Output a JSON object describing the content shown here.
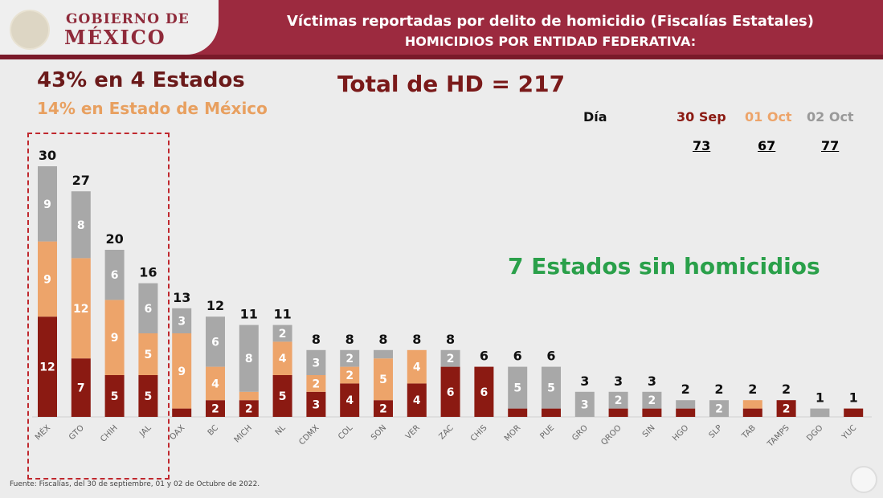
{
  "header": {
    "logo_line1": "GOBIERNO DE",
    "logo_line2": "MÉXICO",
    "title": "Víctimas reportadas por delito de homicidio (Fiscalías Estatales)",
    "subtitle": "HOMICIDIOS POR ENTIDAD FEDERATIVA:"
  },
  "summary": {
    "line1": "43% en 4 Estados",
    "line2": "14% en Estado de México",
    "total": "Total de HD = 217",
    "no_homicides": "7 Estados sin homicidios"
  },
  "legend": {
    "label": "Día",
    "days": [
      {
        "name": "30 Sep",
        "total": "73",
        "color": "#8b1a12"
      },
      {
        "name": "01 Oct",
        "total": "67",
        "color": "#eda46a"
      },
      {
        "name": "02 Oct",
        "total": "77",
        "color": "#a8a8a8"
      }
    ]
  },
  "source": "Fuente: Fiscalías, del 30 de septiembre, 01 y 02 de Octubre de 2022.",
  "chart_data": {
    "type": "bar",
    "stacked": true,
    "categories": [
      "MÉX",
      "GTO",
      "CHIH",
      "JAL",
      "OAX",
      "BC",
      "MICH",
      "NL",
      "CDMX",
      "COL",
      "SON",
      "VER",
      "ZAC",
      "CHIS",
      "MOR",
      "PUE",
      "GRO",
      "QROO",
      "SIN",
      "HGO",
      "SLP",
      "TAB",
      "TAMPS",
      "DGO",
      "YUC"
    ],
    "series": [
      {
        "name": "30 Sep",
        "color": "#8b1a12",
        "values": [
          12,
          7,
          5,
          5,
          1,
          2,
          2,
          5,
          3,
          4,
          2,
          4,
          6,
          6,
          1,
          1,
          0,
          1,
          1,
          1,
          0,
          1,
          2,
          0,
          1
        ]
      },
      {
        "name": "01 Oct",
        "color": "#eda46a",
        "values": [
          9,
          12,
          9,
          5,
          9,
          4,
          1,
          4,
          2,
          2,
          5,
          4,
          0,
          0,
          0,
          0,
          0,
          0,
          0,
          0,
          0,
          1,
          0,
          0,
          0
        ]
      },
      {
        "name": "02 Oct",
        "color": "#a8a8a8",
        "values": [
          9,
          8,
          6,
          6,
          3,
          6,
          8,
          2,
          3,
          2,
          1,
          0,
          2,
          0,
          5,
          5,
          3,
          2,
          2,
          1,
          2,
          0,
          0,
          1,
          0
        ]
      }
    ],
    "totals": [
      30,
      27,
      20,
      16,
      13,
      12,
      11,
      11,
      8,
      8,
      8,
      8,
      8,
      6,
      6,
      6,
      3,
      3,
      3,
      2,
      2,
      2,
      2,
      1,
      1
    ],
    "grid": false
  }
}
